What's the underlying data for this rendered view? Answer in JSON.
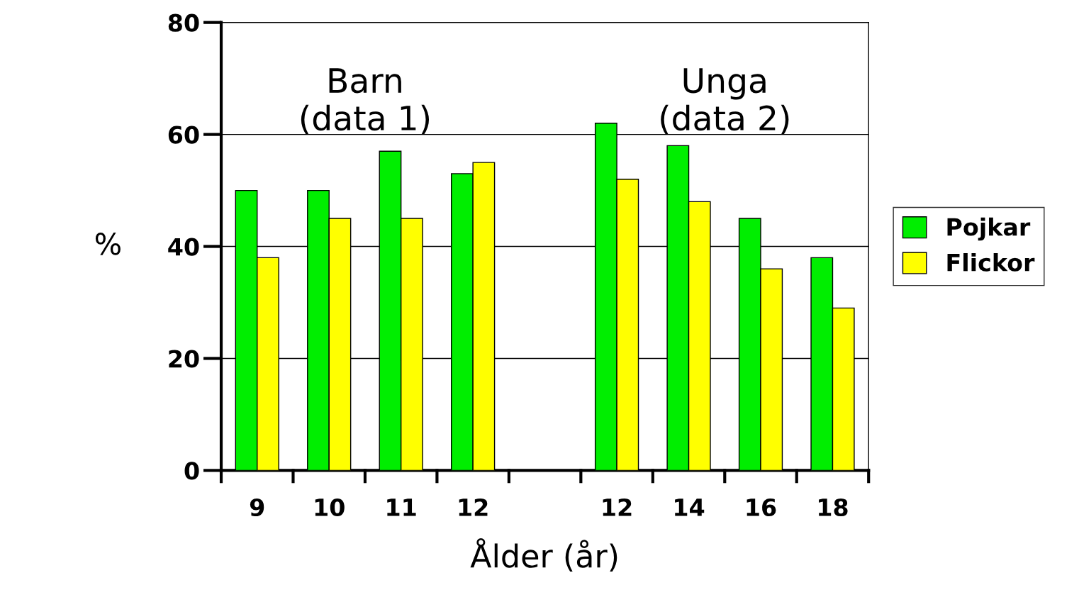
{
  "chart_data": {
    "type": "bar",
    "xlabel": "Ålder (år)",
    "ylabel": "%",
    "categories": [
      "9",
      "10",
      "11",
      "12",
      null,
      "12",
      "14",
      "16",
      "18"
    ],
    "series": [
      {
        "name": "Pojkar",
        "color": "#00ee00",
        "values": [
          50,
          50,
          57,
          53,
          null,
          62,
          58,
          45,
          38
        ]
      },
      {
        "name": "Flickor",
        "color": "#ffff00",
        "values": [
          38,
          45,
          45,
          55,
          null,
          52,
          48,
          36,
          29
        ]
      }
    ],
    "ylim": [
      0,
      80
    ],
    "yticks": [
      0,
      20,
      40,
      60,
      80
    ],
    "grid": "y",
    "legend": "right",
    "annotations": [
      "Barn\n(data 1)",
      "Unga\n(data 2)"
    ]
  }
}
